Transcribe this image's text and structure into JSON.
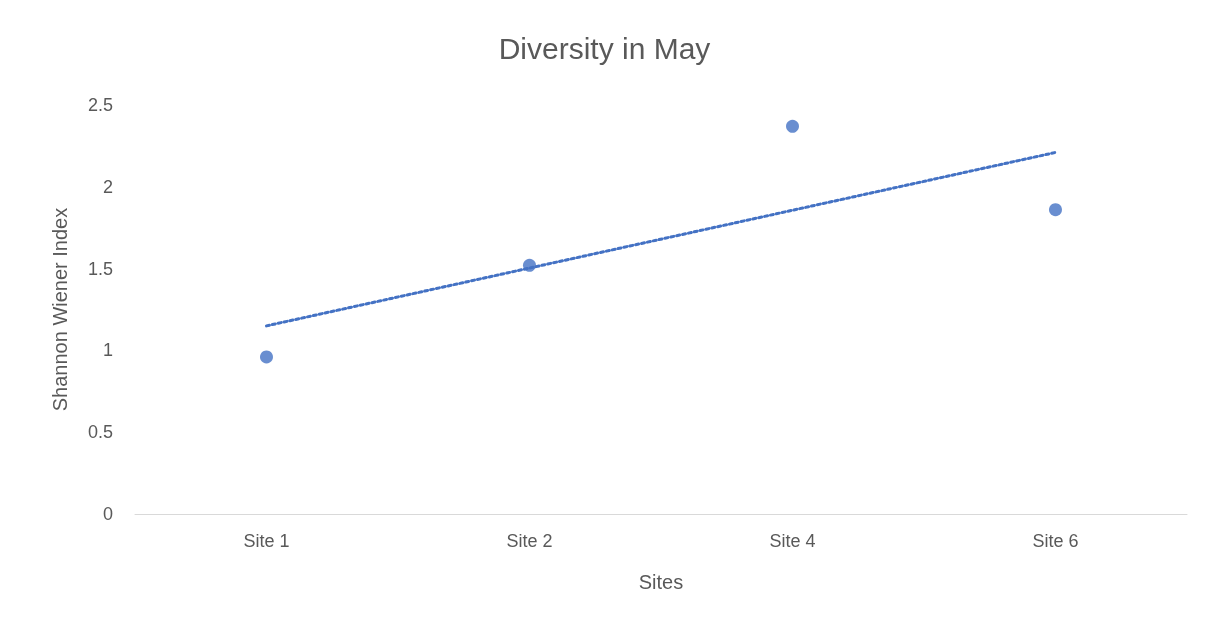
{
  "chart_data": {
    "type": "scatter",
    "title": "Diversity in May",
    "xlabel": "Sites",
    "ylabel": "Shannon Wiener Index",
    "categories": [
      "Site 1",
      "Site 2",
      "Site 4",
      "Site 6"
    ],
    "series": [
      {
        "color": "#4472c4",
        "values": [
          0.96,
          1.52,
          2.37,
          1.86
        ],
        "marker": "circle"
      },
      {
        "type": "line",
        "color": "#4472c4",
        "x": [
          "Site 1",
          "Site 6"
        ],
        "values": [
          1.15,
          2.21
        ],
        "line_style": "dotted",
        "marker": "none"
      }
    ],
    "ylim": [
      0,
      2.5
    ],
    "yticks": [
      0,
      0.5,
      1,
      1.5,
      2,
      2.5
    ],
    "grid": false
  }
}
